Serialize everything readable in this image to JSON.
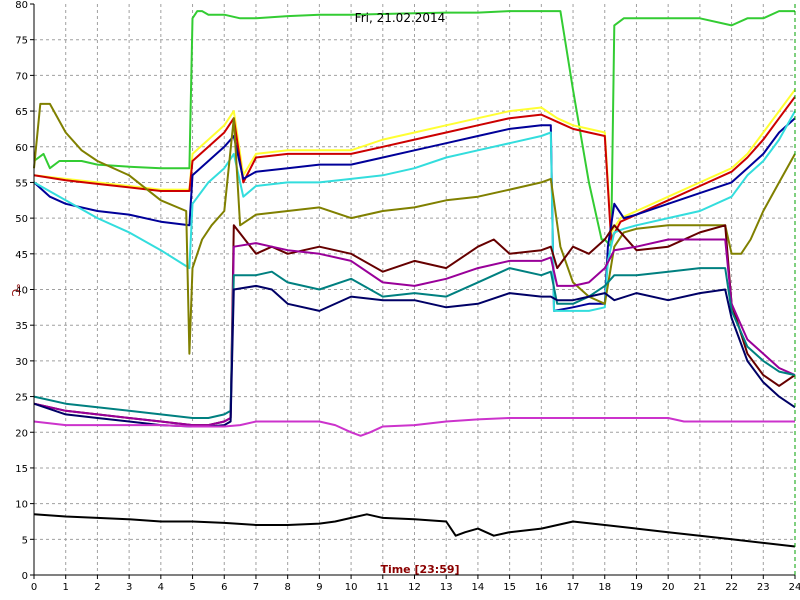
{
  "chart_data": {
    "type": "line",
    "title": "Fri, 21.02.2014",
    "xlabel": "Time [23:59]",
    "ylabel": "°C",
    "xlim": [
      0,
      24
    ],
    "ylim": [
      0,
      80
    ],
    "xticks": [
      0,
      1,
      2,
      3,
      4,
      5,
      6,
      7,
      8,
      9,
      10,
      11,
      12,
      13,
      14,
      15,
      16,
      17,
      18,
      19,
      20,
      21,
      22,
      23,
      24
    ],
    "yticks": [
      0,
      5,
      10,
      15,
      20,
      25,
      30,
      35,
      40,
      45,
      50,
      55,
      60,
      65,
      70,
      75,
      80
    ],
    "grid": true,
    "colors": {
      "grid": "#a0a0a0",
      "current_time_marker": "#00a000",
      "axis": "#000000"
    },
    "current_time": 24,
    "series": [
      {
        "color": "#33cc33",
        "x": [
          0,
          0.3,
          0.5,
          0.8,
          1,
          1.5,
          2,
          3,
          4,
          4.9,
          5,
          5.15,
          5.3,
          5.5,
          6,
          6.5,
          7,
          8,
          9,
          10,
          11,
          12,
          13,
          14,
          15,
          16,
          16.3,
          16.6,
          17,
          17.5,
          17.9,
          18,
          18.2,
          18.3,
          18.6,
          19,
          20,
          21,
          22,
          22.5,
          23,
          23.5,
          24
        ],
        "y": [
          58,
          59,
          57,
          58,
          58,
          58,
          57.5,
          57.2,
          57,
          57,
          78,
          79,
          79,
          78.5,
          78.5,
          78,
          78,
          78.3,
          78.5,
          78.5,
          78.6,
          78.7,
          78.8,
          78.8,
          79,
          79,
          79,
          79,
          68,
          55,
          47,
          47,
          46,
          77,
          78,
          78,
          78,
          78,
          77,
          78,
          78,
          79,
          79
        ]
      },
      {
        "color": "#ffff33",
        "x": [
          0,
          1,
          2,
          3,
          4,
          4.9,
          5,
          5.5,
          6,
          6.3,
          6.6,
          7,
          8,
          9,
          10,
          11,
          12,
          13,
          14,
          15,
          16,
          16.5,
          17,
          17.5,
          18,
          18.2,
          18.5,
          19,
          20,
          21,
          22,
          22.5,
          23,
          23.5,
          24
        ],
        "y": [
          56,
          55.5,
          55,
          54.5,
          54,
          54,
          59,
          61,
          63,
          65,
          56,
          59,
          59.5,
          59.5,
          59.5,
          61,
          62,
          63,
          64,
          65,
          65.5,
          64,
          63,
          62.5,
          62,
          48,
          50,
          51,
          53,
          55,
          57,
          59,
          62,
          65,
          68
        ]
      },
      {
        "color": "#cc0000",
        "x": [
          0,
          1,
          2,
          3,
          4,
          4.9,
          5,
          5.5,
          6,
          6.3,
          6.6,
          7,
          8,
          9,
          10,
          11,
          12,
          13,
          14,
          15,
          16,
          16.5,
          17,
          17.5,
          18,
          18.2,
          18.5,
          19,
          20,
          21,
          22,
          22.5,
          23,
          23.5,
          24
        ],
        "y": [
          56,
          55.3,
          54.8,
          54.3,
          53.8,
          53.8,
          58,
          60,
          62,
          64,
          55,
          58.5,
          59,
          59,
          59,
          60,
          61,
          62,
          63,
          64,
          64.5,
          63.5,
          62.5,
          62,
          61.5,
          47,
          49.5,
          50.5,
          52.5,
          54.5,
          56.5,
          58.5,
          61,
          64,
          67
        ]
      },
      {
        "color": "#000099",
        "x": [
          0,
          0.5,
          1,
          2,
          3,
          4,
          4.9,
          5,
          5.5,
          6,
          6.3,
          6.6,
          7,
          8,
          9,
          10,
          11,
          12,
          13,
          14,
          15,
          16,
          16.3,
          16.4,
          17,
          17.5,
          18,
          18.1,
          18.3,
          18.6,
          19,
          20,
          21,
          22,
          22.5,
          23,
          23.5,
          24
        ],
        "y": [
          55,
          53,
          52,
          51,
          50.5,
          49.5,
          49,
          56,
          58,
          60,
          61.5,
          55.5,
          56.5,
          57,
          57.5,
          57.5,
          58.5,
          59.5,
          60.5,
          61.5,
          62.5,
          63,
          63,
          37,
          37.5,
          38,
          38,
          46,
          52,
          50,
          50.5,
          52,
          53.5,
          55,
          57,
          59,
          62,
          64
        ]
      },
      {
        "color": "#33dddd",
        "x": [
          0,
          1,
          2,
          3,
          4,
          4.9,
          5,
          5.5,
          6,
          6.3,
          6.6,
          7,
          8,
          9,
          10,
          11,
          12,
          13,
          14,
          15,
          16,
          16.3,
          16.4,
          17,
          17.5,
          18,
          18.1,
          18.3,
          18.6,
          19,
          20,
          21,
          22,
          22.5,
          23,
          23.5,
          24
        ],
        "y": [
          55,
          52.5,
          50,
          48,
          45.5,
          43,
          52,
          55,
          57,
          59,
          53,
          54.5,
          55,
          55,
          55.5,
          56,
          57,
          58.5,
          59.5,
          60.5,
          61.5,
          62,
          37,
          37,
          37,
          37.5,
          44,
          48,
          48.5,
          49,
          50,
          51,
          53,
          56,
          58,
          61,
          65
        ]
      },
      {
        "color": "#808000",
        "x": [
          0,
          0.2,
          0.5,
          1,
          1.5,
          2,
          3,
          4,
          4.8,
          4.9,
          5,
          5.3,
          5.6,
          6,
          6.3,
          6.5,
          7,
          8,
          9,
          10,
          11,
          12,
          13,
          14,
          15,
          16,
          16.3,
          16.6,
          17,
          17.5,
          18,
          18.3,
          18.6,
          19,
          20,
          21,
          21.8,
          22,
          22.3,
          22.6,
          23,
          23.5,
          24
        ],
        "y": [
          57,
          66,
          66,
          62,
          59.5,
          58,
          56,
          52.5,
          51,
          31,
          43,
          47,
          49,
          51,
          64,
          49,
          50.5,
          51,
          51.5,
          50,
          51,
          51.5,
          52.5,
          53,
          54,
          55,
          55.5,
          46,
          41,
          39,
          38,
          46,
          48,
          48.5,
          49,
          49,
          49,
          45,
          45,
          47,
          51,
          55,
          59
        ]
      },
      {
        "color": "#660000",
        "x": [
          0,
          1,
          2,
          3,
          4,
          5,
          5.5,
          6,
          6.2,
          6.3,
          7,
          7.5,
          8,
          9,
          10,
          11,
          12,
          13,
          14,
          14.5,
          15,
          16,
          16.3,
          16.5,
          17,
          17.5,
          18,
          18.3,
          19,
          20,
          21,
          21.8,
          22,
          22.5,
          23,
          23.5,
          24
        ],
        "y": [
          24,
          23,
          22.5,
          22,
          21.5,
          21,
          21,
          21.5,
          22,
          49,
          45,
          46,
          45,
          46,
          45,
          42.5,
          44,
          43,
          46,
          47,
          45,
          45.5,
          46,
          43,
          46,
          45,
          47,
          49,
          45.5,
          46,
          48,
          49,
          38,
          31,
          28,
          26.5,
          28
        ]
      },
      {
        "color": "#990099",
        "x": [
          0,
          1,
          2,
          3,
          4,
          5,
          5.5,
          6,
          6.2,
          6.3,
          7,
          7.5,
          8,
          9,
          10,
          11,
          12,
          13,
          14,
          15,
          16,
          16.3,
          16.5,
          17,
          17.5,
          18,
          18.3,
          19,
          20,
          21,
          21.8,
          22,
          22.5,
          23,
          23.5,
          24
        ],
        "y": [
          24,
          23,
          22.5,
          22,
          21.5,
          21,
          21,
          21.5,
          22,
          46,
          46.5,
          46,
          45.5,
          45,
          44,
          41,
          40.5,
          41.5,
          43,
          44,
          44,
          44.5,
          40.5,
          40.5,
          41,
          43,
          45.5,
          46,
          47,
          47,
          47,
          38,
          33,
          31,
          29,
          28
        ]
      },
      {
        "color": "#008080",
        "x": [
          0,
          1,
          2,
          3,
          4,
          5,
          5.5,
          6,
          6.2,
          6.3,
          7,
          7.5,
          8,
          9,
          10,
          11,
          12,
          13,
          14,
          15,
          16,
          16.3,
          16.5,
          17,
          17.5,
          18,
          18.3,
          19,
          20,
          21,
          21.8,
          22,
          22.5,
          23,
          23.5,
          24
        ],
        "y": [
          25,
          24,
          23.5,
          23,
          22.5,
          22,
          22,
          22.5,
          23,
          42,
          42,
          42.5,
          41,
          40,
          41.5,
          39,
          39.5,
          39,
          41,
          43,
          42,
          42.5,
          38,
          38,
          39,
          40.5,
          42,
          42,
          42.5,
          43,
          43,
          37,
          32,
          30,
          28.5,
          28
        ]
      },
      {
        "color": "#000066",
        "x": [
          0,
          1,
          2,
          3,
          4,
          5,
          5.5,
          6,
          6.2,
          6.3,
          7,
          7.5,
          8,
          9,
          10,
          11,
          12,
          13,
          14,
          15,
          16,
          16.3,
          16.5,
          17,
          17.5,
          18,
          18.3,
          19,
          20,
          21,
          21.8,
          22,
          22.5,
          23,
          23.5,
          24
        ],
        "y": [
          24,
          22.5,
          22,
          21.5,
          21,
          20.8,
          20.8,
          21,
          21.5,
          40,
          40.5,
          40,
          38,
          37,
          39,
          38.5,
          38.5,
          37.5,
          38,
          39.5,
          39,
          39,
          38.5,
          38.5,
          39,
          39.5,
          38.5,
          39.5,
          38.5,
          39.5,
          40,
          36,
          30,
          27,
          25,
          23.5
        ]
      },
      {
        "color": "#cc33cc",
        "x": [
          0,
          1,
          2,
          3,
          4,
          5,
          6,
          6.5,
          7,
          8,
          9,
          9.5,
          10,
          10.3,
          10.6,
          11,
          12,
          13,
          14,
          15,
          16,
          17,
          18,
          19,
          20,
          20.5,
          21,
          22,
          23,
          24
        ],
        "y": [
          21.5,
          21,
          21,
          21,
          21,
          20.8,
          20.8,
          21,
          21.5,
          21.5,
          21.5,
          21,
          20,
          19.5,
          20,
          20.8,
          21,
          21.5,
          21.8,
          22,
          22,
          22,
          22,
          22,
          22,
          21.5,
          21.5,
          21.5,
          21.5,
          21.5
        ]
      },
      {
        "color": "#000000",
        "x": [
          0,
          1,
          2,
          3,
          4,
          5,
          6,
          7,
          8,
          9,
          9.5,
          10,
          10.5,
          11,
          12,
          13,
          13.3,
          13.6,
          14,
          14.5,
          15,
          16,
          17,
          18,
          19,
          20,
          21,
          22,
          23,
          24
        ],
        "y": [
          8.5,
          8.2,
          8,
          7.8,
          7.5,
          7.5,
          7.3,
          7,
          7,
          7.2,
          7.5,
          8,
          8.5,
          8,
          7.8,
          7.5,
          5.5,
          6,
          6.5,
          5.5,
          6,
          6.5,
          7.5,
          7,
          6.5,
          6,
          5.5,
          5,
          4.5,
          4
        ]
      }
    ]
  }
}
